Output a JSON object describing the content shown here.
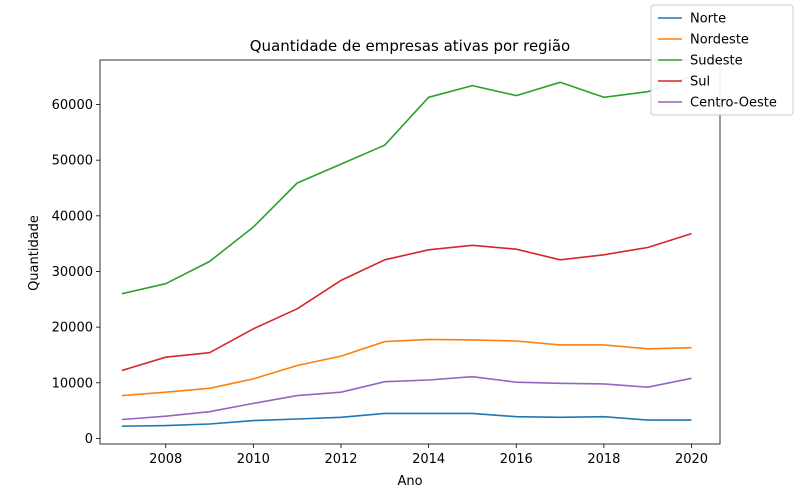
{
  "chart_data": {
    "type": "line",
    "title": "Quantidade de empresas ativas por região",
    "xlabel": "Ano",
    "ylabel": "Quantidade",
    "xlim": [
      2006.5,
      2020.65
    ],
    "ylim": [
      -1000,
      68000
    ],
    "xticks": [
      2008,
      2010,
      2012,
      2014,
      2016,
      2018,
      2020
    ],
    "yticks": [
      0,
      10000,
      20000,
      30000,
      40000,
      50000,
      60000
    ],
    "grid": false,
    "legend_position": "top-right",
    "x": [
      2007,
      2008,
      2009,
      2010,
      2011,
      2012,
      2013,
      2014,
      2015,
      2016,
      2017,
      2018,
      2019,
      2020
    ],
    "series": [
      {
        "name": "Norte",
        "color": "#1f77b4",
        "values": [
          2200,
          2300,
          2600,
          3200,
          3500,
          3800,
          4500,
          4500,
          4500,
          3900,
          3800,
          3900,
          3300,
          3300
        ]
      },
      {
        "name": "Nordeste",
        "color": "#ff7f0e",
        "values": [
          7700,
          8300,
          9000,
          10700,
          13100,
          14800,
          17400,
          17800,
          17700,
          17500,
          16800,
          16800,
          16100,
          16300
        ]
      },
      {
        "name": "Sudeste",
        "color": "#2ca02c",
        "values": [
          26000,
          27800,
          31800,
          38000,
          45900,
          49300,
          52700,
          61300,
          63400,
          61600,
          64000,
          61300,
          62300,
          65100
        ]
      },
      {
        "name": "Sul",
        "color": "#d62728",
        "values": [
          12200,
          14600,
          15400,
          19700,
          23300,
          28400,
          32100,
          33900,
          34700,
          34000,
          32100,
          33000,
          34300,
          36800
        ]
      },
      {
        "name": "Centro-Oeste",
        "color": "#9467bd",
        "values": [
          3400,
          4000,
          4800,
          6300,
          7700,
          8300,
          10200,
          10500,
          11100,
          10100,
          9900,
          9800,
          9200,
          10800
        ]
      }
    ]
  }
}
